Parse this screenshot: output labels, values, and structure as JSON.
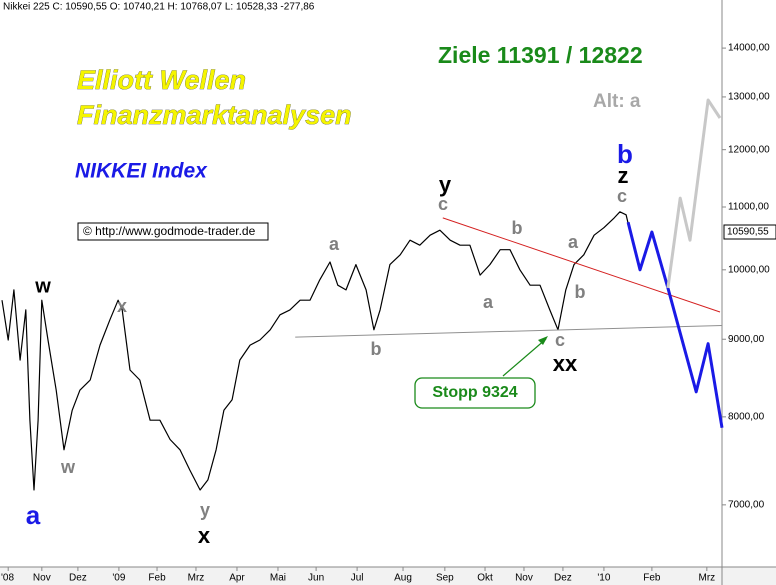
{
  "chart_data": {
    "type": "line",
    "header": "Nikkei 225 C: 10590,55 O: 10740,21 H: 10768,07 L: 10528,33 -277,86",
    "title": "Elliott Wellen",
    "subtitle": "Finanzmarktanalysen",
    "instrument": "NIKKEI Index",
    "targets": "Ziele 11391 / 12822",
    "alternative": "Alt: a",
    "source": "© http://www.godmode-trader.de",
    "stop": "Stopp 9324",
    "log_scale": true,
    "ylim": [
      6370,
      15060
    ],
    "yticks": [
      {
        "value": 7000,
        "label": "7000,00"
      },
      {
        "value": 8000,
        "label": "8000,00"
      },
      {
        "value": 9000,
        "label": "9000,00"
      },
      {
        "value": 10000,
        "label": "10000,00"
      },
      {
        "value": 11000,
        "label": "11000,00"
      },
      {
        "value": 12000,
        "label": "12000,00"
      },
      {
        "value": 13000,
        "label": "13000,00"
      },
      {
        "value": 14000,
        "label": "14000,00"
      }
    ],
    "last_price": {
      "value": 10590.55,
      "label": "10590,55"
    },
    "xlim": [
      0,
      17.61
    ],
    "xticks": [
      {
        "value": 0.2,
        "label": "'08"
      },
      {
        "value": 1.02,
        "label": "Nov"
      },
      {
        "value": 1.9,
        "label": "Dez"
      },
      {
        "value": 2.9,
        "label": "'09"
      },
      {
        "value": 3.83,
        "label": "Feb"
      },
      {
        "value": 4.78,
        "label": "Mrz"
      },
      {
        "value": 5.78,
        "label": "Apr"
      },
      {
        "value": 6.78,
        "label": "Mai"
      },
      {
        "value": 7.71,
        "label": "Jun"
      },
      {
        "value": 8.71,
        "label": "Jul"
      },
      {
        "value": 9.83,
        "label": "Aug"
      },
      {
        "value": 10.85,
        "label": "Sep"
      },
      {
        "value": 11.83,
        "label": "Okt"
      },
      {
        "value": 12.78,
        "label": "Nov"
      },
      {
        "value": 13.73,
        "label": "Dez"
      },
      {
        "value": 14.73,
        "label": "'10"
      },
      {
        "value": 15.9,
        "label": "Feb"
      },
      {
        "value": 17.24,
        "label": "Mrz"
      }
    ],
    "series": [
      {
        "color": "#000000",
        "x": [
          0.05,
          0.2,
          0.34,
          0.49,
          0.63,
          0.73,
          0.83,
          0.93,
          1.02,
          1.17,
          1.37,
          1.56,
          1.76,
          1.95,
          2.2,
          2.44,
          2.68,
          2.88,
          2.98,
          3.17,
          3.41,
          3.66,
          3.9,
          4.15,
          4.39,
          4.63,
          4.88,
          5.07,
          5.27,
          5.46,
          5.66,
          5.85,
          6.1,
          6.34,
          6.59,
          6.83,
          7.07,
          7.32,
          7.56,
          7.8,
          8.05,
          8.24,
          8.44,
          8.68,
          8.93,
          9.12,
          9.27,
          9.51,
          9.76,
          10.0,
          10.24,
          10.49,
          10.73,
          10.98,
          11.22,
          11.46,
          11.71,
          11.95,
          12.2,
          12.44,
          12.68,
          12.93,
          13.17,
          13.41,
          13.61,
          13.8,
          14.0,
          14.24,
          14.49,
          14.73,
          14.98,
          15.12,
          15.27,
          15.37
        ],
        "values": [
          9550,
          8990,
          9700,
          8720,
          9410,
          7960,
          7160,
          7960,
          9550,
          8990,
          8330,
          7610,
          8080,
          8330,
          8460,
          8920,
          9270,
          9550,
          9410,
          8590,
          8460,
          7960,
          7960,
          7730,
          7610,
          7380,
          7160,
          7270,
          7610,
          8080,
          8210,
          8720,
          8920,
          8990,
          9130,
          9340,
          9410,
          9550,
          9550,
          9850,
          10120,
          9770,
          9700,
          10080,
          9700,
          9130,
          9410,
          10080,
          10230,
          10460,
          10380,
          10540,
          10620,
          10460,
          10380,
          10380,
          9920,
          10080,
          10310,
          10310,
          10000,
          9770,
          9770,
          9410,
          9130,
          9700,
          10080,
          10230,
          10540,
          10660,
          10820,
          10920,
          10870,
          10590
        ]
      },
      {
        "color": "#d42020",
        "x": [
          10.8,
          17.56
        ],
        "values": [
          10820,
          9380
        ]
      },
      {
        "color": "#909090",
        "x": [
          7.2,
          17.61
        ],
        "values": [
          9030,
          9190
        ]
      },
      {
        "color": "#1a1ae6",
        "x": [
          15.32,
          15.61,
          15.9,
          16.29,
          16.98,
          17.27,
          17.61
        ],
        "values": [
          10750,
          10000,
          10590,
          9730,
          8310,
          8940,
          7870
        ]
      },
      {
        "color": "#c8c8c8",
        "x": [
          16.29,
          16.59,
          16.83,
          17.27,
          17.56
        ],
        "values": [
          9730,
          11150,
          10460,
          12940,
          12590
        ]
      }
    ],
    "wave_labels": [
      {
        "text": "a",
        "color": "#1a1ae6"
      },
      {
        "text": "w",
        "color": "#000000"
      },
      {
        "text": "w",
        "color": "#808080"
      },
      {
        "text": "x",
        "color": "#808080"
      },
      {
        "text": "y",
        "color": "#808080"
      },
      {
        "text": "x",
        "color": "#000000"
      },
      {
        "text": "a",
        "color": "#808080"
      },
      {
        "text": "b",
        "color": "#808080"
      },
      {
        "text": "y",
        "color": "#000000"
      },
      {
        "text": "c",
        "color": "#808080"
      },
      {
        "text": "b",
        "color": "#808080"
      },
      {
        "text": "a",
        "color": "#808080"
      },
      {
        "text": "a",
        "color": "#808080"
      },
      {
        "text": "b",
        "color": "#808080"
      },
      {
        "text": "c",
        "color": "#808080"
      },
      {
        "text": "xx",
        "color": "#000000"
      },
      {
        "text": "c",
        "color": "#808080"
      },
      {
        "text": "z",
        "color": "#000000"
      },
      {
        "text": "b",
        "color": "#1a1ae6"
      }
    ]
  }
}
